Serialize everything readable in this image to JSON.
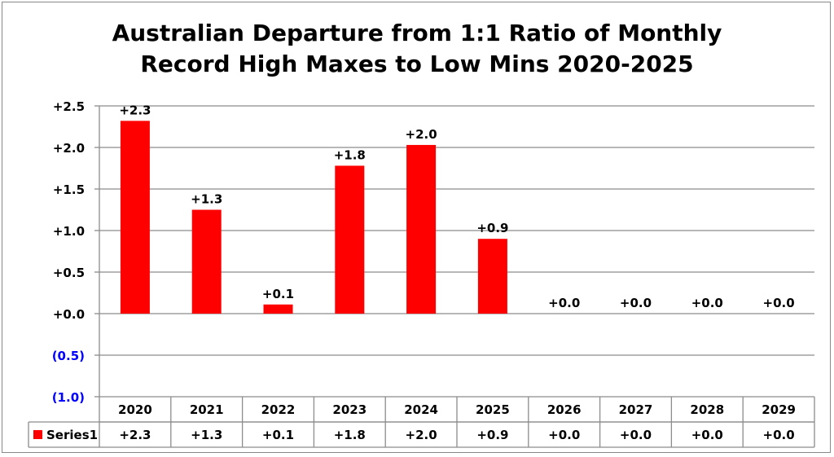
{
  "chart_data": {
    "type": "bar",
    "title_lines": [
      "Australian Departure from 1:1 Ratio of Monthly",
      "Record High Maxes to Low Mins 2020-2025"
    ],
    "categories": [
      "2020",
      "2021",
      "2022",
      "2023",
      "2024",
      "2025",
      "2026",
      "2027",
      "2028",
      "2029"
    ],
    "series": [
      {
        "name": "Series1",
        "values": [
          2.32,
          1.25,
          0.11,
          1.78,
          2.03,
          0.9,
          0.0,
          0.0,
          0.0,
          0.0
        ],
        "labels": [
          "+2.3",
          "+1.3",
          "+0.1",
          "+1.8",
          "+2.0",
          "+0.9",
          "+0.0",
          "+0.0",
          "+0.0",
          "+0.0"
        ],
        "color": "#ff0000"
      }
    ],
    "ylim": [
      -1.0,
      2.5
    ],
    "yticks": [
      2.5,
      2.0,
      1.5,
      1.0,
      0.5,
      0.0,
      -0.5,
      -1.0
    ],
    "ytick_labels": [
      "+2.5",
      "+2.0",
      "+1.5",
      "+1.0",
      "+0.5",
      "+0.0",
      "(0.5)",
      "(1.0)"
    ],
    "negative_tick_color": "#0000ff",
    "grid": true,
    "legend": "data-table",
    "xlabel": "",
    "ylabel": ""
  }
}
